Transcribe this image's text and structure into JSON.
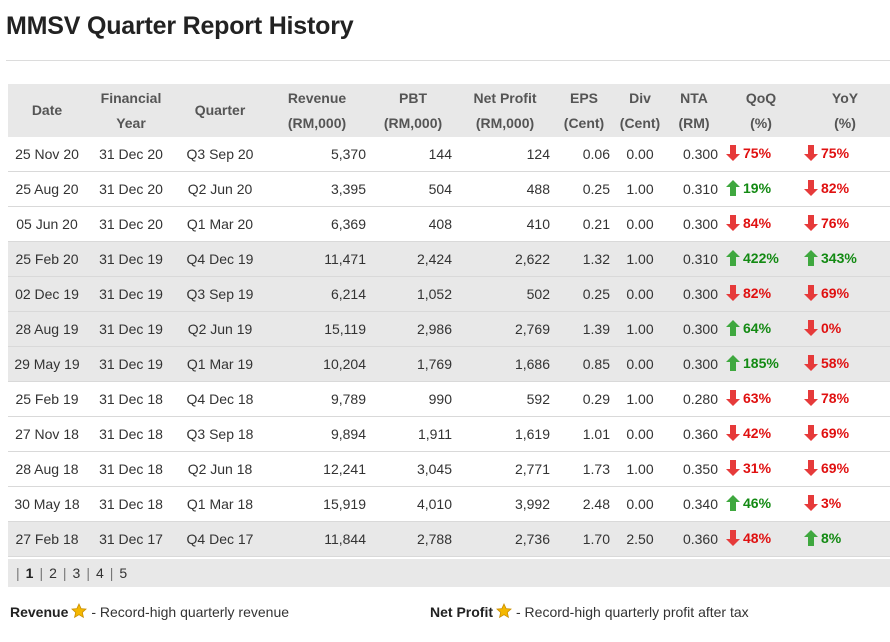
{
  "page": {
    "title": "MMSV Quarter Report History"
  },
  "colors": {
    "header_bg": "#e8e8e8",
    "up": "#138a13",
    "down": "#e01010",
    "arrow_up": "#3fa83f",
    "arrow_down": "#e63a3a",
    "star": "#f5b800"
  },
  "table": {
    "headers": [
      {
        "l1": "Date",
        "l2": ""
      },
      {
        "l1": "Financial",
        "l2": "Year"
      },
      {
        "l1": "Quarter",
        "l2": ""
      },
      {
        "l1": "Revenue",
        "l2": "(RM,000)"
      },
      {
        "l1": "PBT",
        "l2": "(RM,000)"
      },
      {
        "l1": "Net Profit",
        "l2": "(RM,000)"
      },
      {
        "l1": "EPS",
        "l2": "(Cent)"
      },
      {
        "l1": "Div",
        "l2": "(Cent)"
      },
      {
        "l1": "NTA",
        "l2": "(RM)"
      },
      {
        "l1": "QoQ",
        "l2": "(%)"
      },
      {
        "l1": "YoY",
        "l2": "(%)"
      }
    ],
    "rows": [
      {
        "date": "25 Nov 20",
        "fy": "31 Dec 20",
        "quarter": "Q3 Sep 20",
        "revenue": "5,370",
        "pbt": "144",
        "net_profit": "124",
        "eps": "0.06",
        "div": "0.00",
        "nta": "0.300",
        "qoq": "75%",
        "qoq_dir": "down",
        "yoy": "75%",
        "yoy_dir": "down",
        "highlight": false
      },
      {
        "date": "25 Aug 20",
        "fy": "31 Dec 20",
        "quarter": "Q2 Jun 20",
        "revenue": "3,395",
        "pbt": "504",
        "net_profit": "488",
        "eps": "0.25",
        "div": "1.00",
        "nta": "0.310",
        "qoq": "19%",
        "qoq_dir": "up",
        "yoy": "82%",
        "yoy_dir": "down",
        "highlight": false
      },
      {
        "date": "05 Jun 20",
        "fy": "31 Dec 20",
        "quarter": "Q1 Mar 20",
        "revenue": "6,369",
        "pbt": "408",
        "net_profit": "410",
        "eps": "0.21",
        "div": "0.00",
        "nta": "0.300",
        "qoq": "84%",
        "qoq_dir": "down",
        "yoy": "76%",
        "yoy_dir": "down",
        "highlight": false
      },
      {
        "date": "25 Feb 20",
        "fy": "31 Dec 19",
        "quarter": "Q4 Dec 19",
        "revenue": "11,471",
        "pbt": "2,424",
        "net_profit": "2,622",
        "eps": "1.32",
        "div": "1.00",
        "nta": "0.310",
        "qoq": "422%",
        "qoq_dir": "up",
        "yoy": "343%",
        "yoy_dir": "up",
        "highlight": true
      },
      {
        "date": "02 Dec 19",
        "fy": "31 Dec 19",
        "quarter": "Q3 Sep 19",
        "revenue": "6,214",
        "pbt": "1,052",
        "net_profit": "502",
        "eps": "0.25",
        "div": "0.00",
        "nta": "0.300",
        "qoq": "82%",
        "qoq_dir": "down",
        "yoy": "69%",
        "yoy_dir": "down",
        "highlight": true
      },
      {
        "date": "28 Aug 19",
        "fy": "31 Dec 19",
        "quarter": "Q2 Jun 19",
        "revenue": "15,119",
        "pbt": "2,986",
        "net_profit": "2,769",
        "eps": "1.39",
        "div": "1.00",
        "nta": "0.300",
        "qoq": "64%",
        "qoq_dir": "up",
        "yoy": "0%",
        "yoy_dir": "down",
        "highlight": true
      },
      {
        "date": "29 May 19",
        "fy": "31 Dec 19",
        "quarter": "Q1 Mar 19",
        "revenue": "10,204",
        "pbt": "1,769",
        "net_profit": "1,686",
        "eps": "0.85",
        "div": "0.00",
        "nta": "0.300",
        "qoq": "185%",
        "qoq_dir": "up",
        "yoy": "58%",
        "yoy_dir": "down",
        "highlight": true
      },
      {
        "date": "25 Feb 19",
        "fy": "31 Dec 18",
        "quarter": "Q4 Dec 18",
        "revenue": "9,789",
        "pbt": "990",
        "net_profit": "592",
        "eps": "0.29",
        "div": "1.00",
        "nta": "0.280",
        "qoq": "63%",
        "qoq_dir": "down",
        "yoy": "78%",
        "yoy_dir": "down",
        "highlight": false
      },
      {
        "date": "27 Nov 18",
        "fy": "31 Dec 18",
        "quarter": "Q3 Sep 18",
        "revenue": "9,894",
        "pbt": "1,911",
        "net_profit": "1,619",
        "eps": "1.01",
        "div": "0.00",
        "nta": "0.360",
        "qoq": "42%",
        "qoq_dir": "down",
        "yoy": "69%",
        "yoy_dir": "down",
        "highlight": false
      },
      {
        "date": "28 Aug 18",
        "fy": "31 Dec 18",
        "quarter": "Q2 Jun 18",
        "revenue": "12,241",
        "pbt": "3,045",
        "net_profit": "2,771",
        "eps": "1.73",
        "div": "1.00",
        "nta": "0.350",
        "qoq": "31%",
        "qoq_dir": "down",
        "yoy": "69%",
        "yoy_dir": "down",
        "highlight": false
      },
      {
        "date": "30 May 18",
        "fy": "31 Dec 18",
        "quarter": "Q1 Mar 18",
        "revenue": "15,919",
        "pbt": "4,010",
        "net_profit": "3,992",
        "eps": "2.48",
        "div": "0.00",
        "nta": "0.340",
        "qoq": "46%",
        "qoq_dir": "up",
        "yoy": "3%",
        "yoy_dir": "down",
        "highlight": false
      },
      {
        "date": "27 Feb 18",
        "fy": "31 Dec 17",
        "quarter": "Q4 Dec 17",
        "revenue": "11,844",
        "pbt": "2,788",
        "net_profit": "2,736",
        "eps": "1.70",
        "div": "2.50",
        "nta": "0.360",
        "qoq": "48%",
        "qoq_dir": "down",
        "yoy": "8%",
        "yoy_dir": "up",
        "highlight": true
      }
    ]
  },
  "pagination": {
    "pages": [
      "1",
      "2",
      "3",
      "4",
      "5"
    ],
    "current": "1"
  },
  "legend": {
    "revenue_label": "Revenue",
    "revenue_desc": "- Record-high quarterly revenue",
    "net_profit_label": "Net Profit",
    "net_profit_desc": "- Record-high quarterly profit after tax",
    "icon": "star-icon"
  }
}
